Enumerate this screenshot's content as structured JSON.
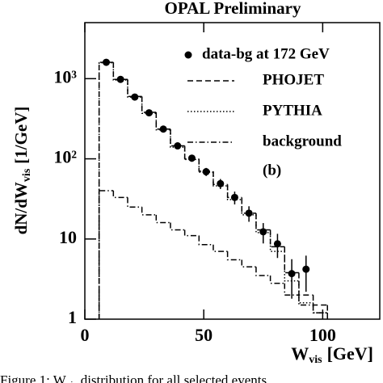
{
  "chart_data": {
    "type": "histogram",
    "title": "OPAL Preliminary",
    "xlabel": {
      "main": "W",
      "sub": "vis",
      "unit": "[GeV]"
    },
    "ylabel": {
      "main": "dN/dW",
      "sub": "vis",
      "unit": "[1/GeV]"
    },
    "annotation": "(b)",
    "caption": {
      "pre": "Figure 1: W",
      "sub": "vis",
      "post": "distribution for all selected events"
    },
    "xlim": [
      0,
      124
    ],
    "xticks": [
      0,
      50,
      100
    ],
    "ylim": [
      1,
      5000
    ],
    "ylog": true,
    "yticks": [
      1,
      10,
      {
        "value": 100,
        "label": "10²"
      },
      {
        "value": 1000,
        "label": "10³"
      }
    ],
    "bins": [
      6,
      12,
      18,
      24,
      30,
      36,
      42,
      48,
      54,
      60,
      66,
      72,
      78,
      84,
      90,
      96,
      102
    ],
    "points": {
      "name": "data-bg at 172 GeV",
      "color": "#000000",
      "x": [
        9,
        15,
        21,
        27,
        33,
        39,
        45,
        51,
        57,
        63,
        69,
        75,
        81,
        87,
        93
      ],
      "values": [
        1600,
        980,
        590,
        375,
        235,
        145,
        102,
        69,
        49,
        33,
        21,
        12.3,
        8.7,
        3.7,
        4.2
      ],
      "errors": [
        40,
        31,
        24,
        19,
        15,
        12,
        10,
        8,
        7,
        6,
        4.6,
        3.5,
        2.9,
        1.9,
        2
      ]
    },
    "series": [
      {
        "name": "PHOJET",
        "color": "#000000",
        "dash": "7,4",
        "values": [
          1600,
          980,
          600,
          380,
          235,
          145,
          100,
          70,
          48,
          33,
          21,
          13,
          8,
          3.8,
          2,
          1.5
        ]
      },
      {
        "name": "PYTHIA",
        "color": "#000000",
        "dash": "1.5,2.5",
        "values": [
          1580,
          960,
          590,
          370,
          230,
          140,
          98,
          68,
          46,
          31,
          20,
          12,
          7,
          3,
          1.6,
          1.2
        ]
      },
      {
        "name": "background",
        "color": "#000000",
        "dash": "7,3,1.5,3",
        "values": [
          40,
          33,
          25,
          20,
          16,
          13,
          11,
          8.5,
          7,
          5.5,
          4.5,
          3.5,
          2.8,
          2,
          1.5,
          1.2
        ]
      }
    ]
  }
}
